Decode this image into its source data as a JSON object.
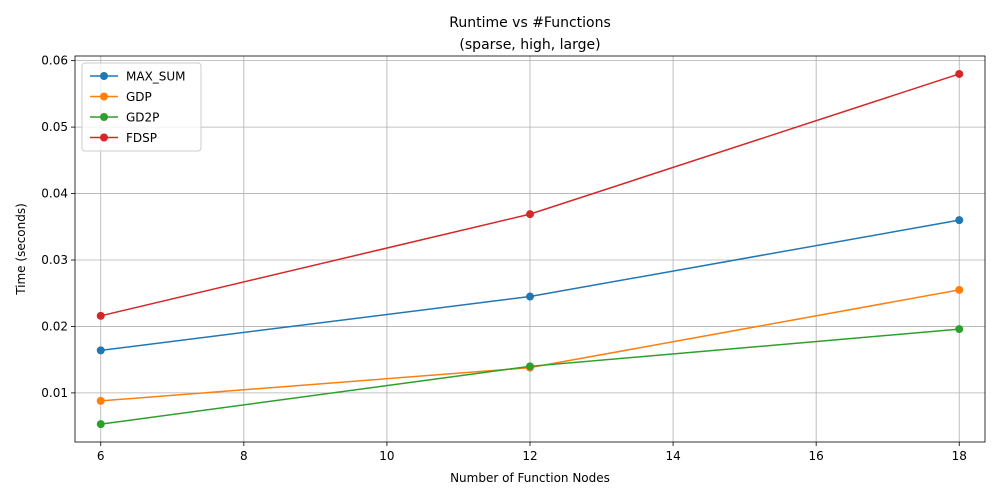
{
  "chart_data": {
    "type": "line",
    "title": "Runtime vs #Functions",
    "subtitle": "(sparse, high, large)",
    "xlabel": "Number of Function Nodes",
    "ylabel": "Time (seconds)",
    "xlim": [
      5.64,
      18.36
    ],
    "ylim": [
      0.00261,
      0.0607
    ],
    "xticks": [
      6,
      8,
      10,
      12,
      14,
      16,
      18
    ],
    "yticks": [
      0.01,
      0.02,
      0.03,
      0.04,
      0.05,
      0.06
    ],
    "grid": true,
    "legend_position": "top-left",
    "x": [
      6,
      12,
      18
    ],
    "series": [
      {
        "name": "MAX_SUM",
        "color": "#1f77b4",
        "values": [
          0.0164,
          0.0245,
          0.036
        ]
      },
      {
        "name": "GDP",
        "color": "#ff7f0e",
        "values": [
          0.0088,
          0.0138,
          0.0255
        ]
      },
      {
        "name": "GD2P",
        "color": "#2ca02c",
        "values": [
          0.0053,
          0.014,
          0.0196
        ]
      },
      {
        "name": "FDSP",
        "color": "#d62728",
        "values": [
          0.0216,
          0.0369,
          0.058
        ]
      }
    ]
  }
}
